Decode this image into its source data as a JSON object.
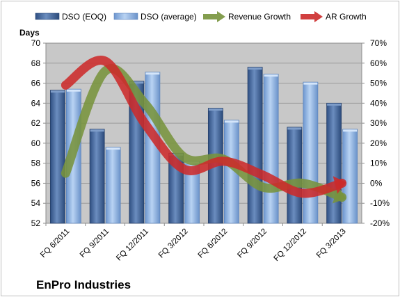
{
  "chart_data": {
    "type": "bar",
    "company": "EnPro Industries",
    "ylabel": "Days",
    "ylim": [
      52,
      70
    ],
    "y_ticks": [
      "52",
      "54",
      "56",
      "58",
      "60",
      "62",
      "64",
      "66",
      "68",
      "70"
    ],
    "y2lim": [
      -20,
      70
    ],
    "y2_ticks": [
      "-20%",
      "-10%",
      "0%",
      "10%",
      "20%",
      "30%",
      "40%",
      "50%",
      "60%",
      "70%"
    ],
    "grid": true,
    "legend_position": "top",
    "categories": [
      "FQ 6/2011",
      "FQ 9/2011",
      "FQ 12/2011",
      "FQ 3/2012",
      "FQ 6/2012",
      "FQ 9/2012",
      "FQ 12/2012",
      "FQ 3/2013"
    ],
    "series": [
      {
        "name": "DSO (EOQ)",
        "kind": "bar",
        "axis": "left",
        "color": "#4f6fa0",
        "values": [
          65.3,
          61.4,
          66.2,
          59.0,
          63.5,
          67.6,
          61.6,
          64.0
        ]
      },
      {
        "name": "DSO (average)",
        "kind": "bar",
        "axis": "left",
        "color": "#8fb3e3",
        "values": [
          65.4,
          59.6,
          67.1,
          58.2,
          62.3,
          66.9,
          66.1,
          61.4
        ]
      },
      {
        "name": "Revenue Growth",
        "kind": "line",
        "axis": "right",
        "color": "#77933c",
        "values": [
          5,
          56,
          40,
          13,
          12,
          -2,
          0,
          -7
        ]
      },
      {
        "name": "AR Growth",
        "kind": "line",
        "axis": "right",
        "color": "#cc2a2a",
        "values": [
          49,
          61,
          30,
          7,
          11,
          4,
          -5,
          0
        ]
      }
    ]
  }
}
